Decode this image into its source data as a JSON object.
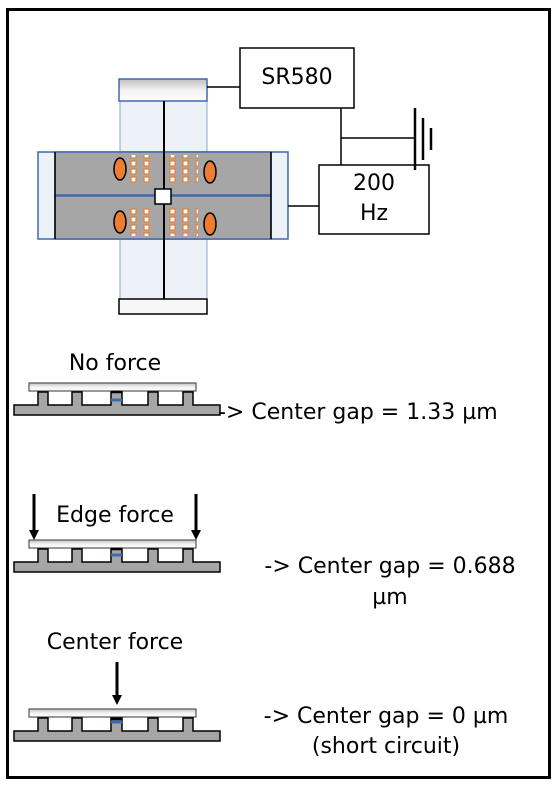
{
  "instrument": {
    "lockin": "SR580",
    "source_line1": "200",
    "source_line2": "Hz"
  },
  "cases": [
    {
      "title": "No force",
      "result_line1": "-> Center gap = 1.33 µm",
      "result_line2": ""
    },
    {
      "title": "Edge force",
      "result_line1": "-> Center gap = 0.688",
      "result_line2": "µm"
    },
    {
      "title": "Center force",
      "result_line1": "-> Center gap =  0 µm",
      "result_line2": "(short circuit)"
    }
  ],
  "colors": {
    "frame_gray": "#a6a6a6",
    "blue_outline": "#3e68b0",
    "orange": "#ed7d31",
    "light_blue": "#edf2f9"
  }
}
